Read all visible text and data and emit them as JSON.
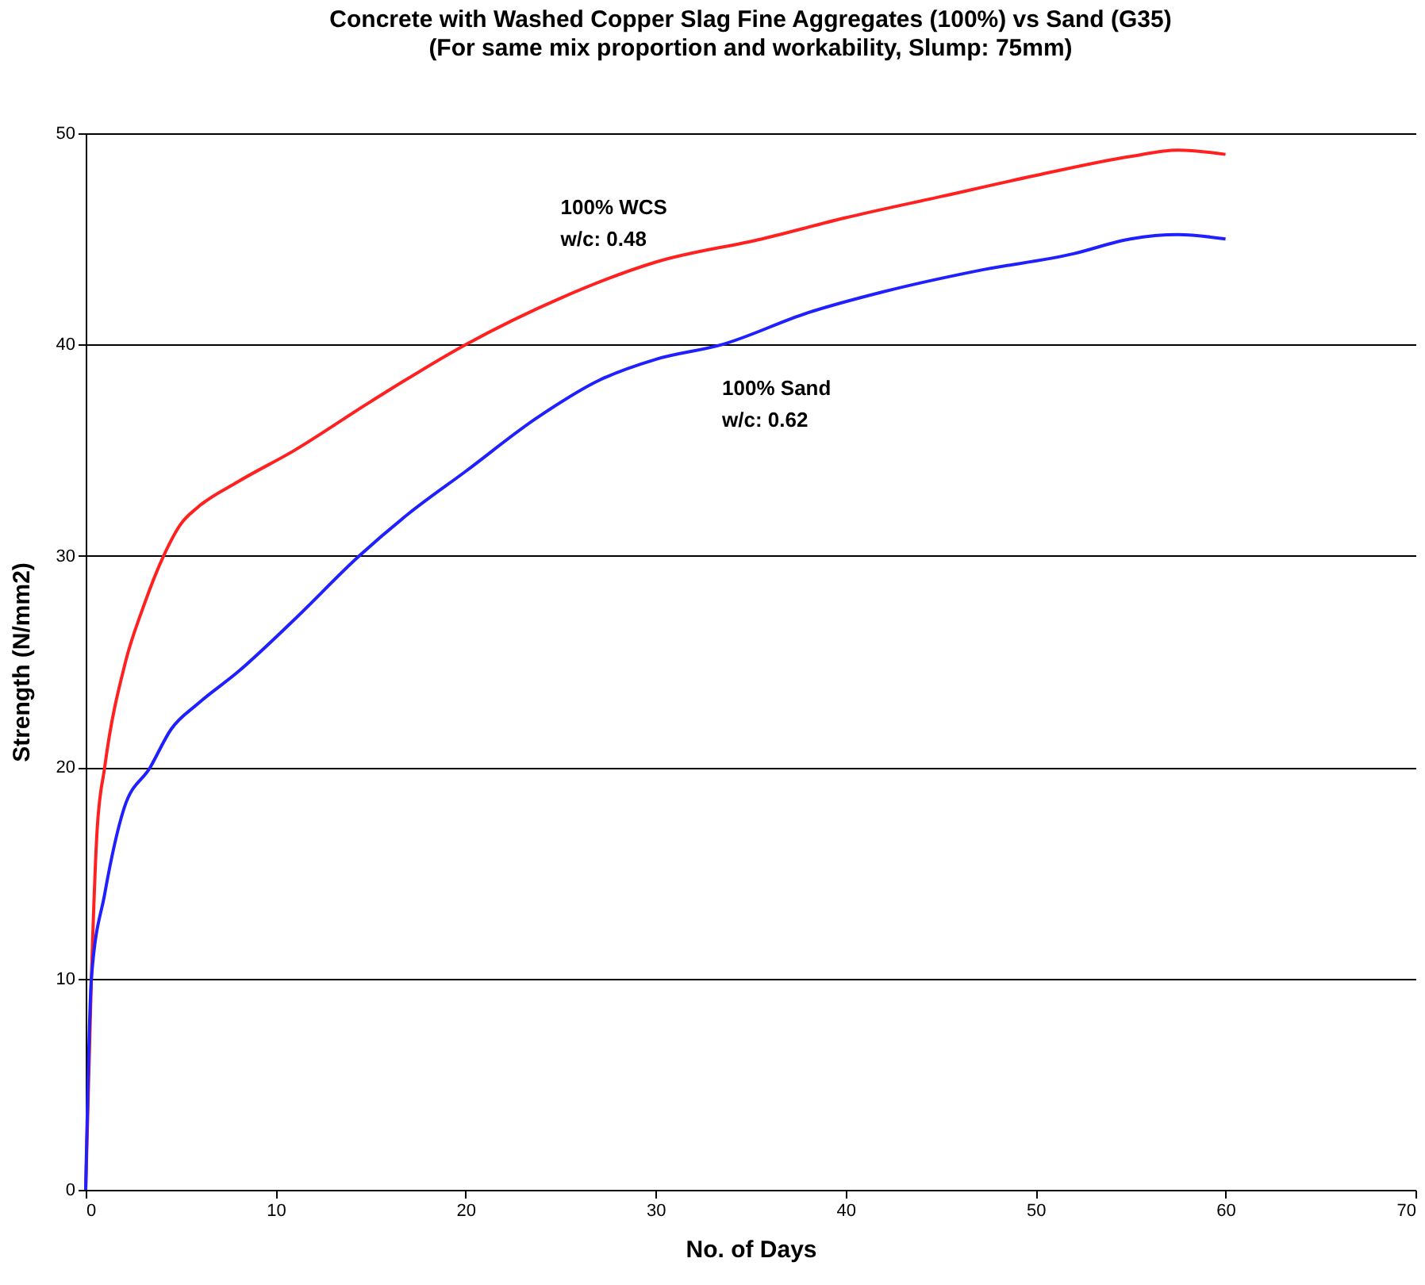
{
  "chart_data": {
    "type": "line",
    "title": "Concrete with Washed Copper Slag Fine Aggregates (100%) vs Sand (G35)",
    "subtitle": "(For same mix proportion and workability, Slump: 75mm)",
    "xlabel": "No. of Days",
    "ylabel": "Strength (N/mm2)",
    "xlim": [
      0,
      70
    ],
    "xticks": [
      0,
      10,
      20,
      30,
      40,
      50,
      60,
      70
    ],
    "ylim": [
      0,
      50
    ],
    "yticks": [
      0,
      10,
      20,
      30,
      40,
      50
    ],
    "grid": "y",
    "marker": "none",
    "line_style": "solid",
    "series": [
      {
        "name": "100% WCS",
        "color": "#ff2020",
        "x": [
          0,
          0.3,
          0.6,
          1,
          2.1,
          3,
          4.1,
          5,
          5.9,
          8,
          11,
          15,
          20,
          25,
          30,
          35.6,
          40,
          45,
          50,
          55,
          57.5,
          60
        ],
        "values": [
          0,
          10,
          17,
          20,
          25,
          27.5,
          30,
          31.5,
          32.3,
          33.5,
          35,
          37.3,
          40,
          42.2,
          43.9,
          45,
          46,
          47,
          48,
          48.9,
          49.2,
          49
        ]
      },
      {
        "name": "100% Sand",
        "color": "#2020ff",
        "x": [
          0,
          0.3,
          1,
          2,
          3.4,
          4.5,
          5.9,
          8,
          11,
          14.4,
          17,
          20,
          23.7,
          27,
          30,
          33.5,
          38,
          42,
          47,
          52,
          55,
          57.5,
          60
        ],
        "values": [
          0,
          10,
          14,
          18,
          20,
          21.8,
          23,
          24.5,
          27,
          30,
          32,
          34,
          36.5,
          38.3,
          39.3,
          40,
          41.5,
          42.5,
          43.5,
          44.3,
          45,
          45.2,
          45
        ]
      }
    ],
    "annotations": [
      "w/c: 0.48",
      "w/c: 0.62"
    ]
  }
}
